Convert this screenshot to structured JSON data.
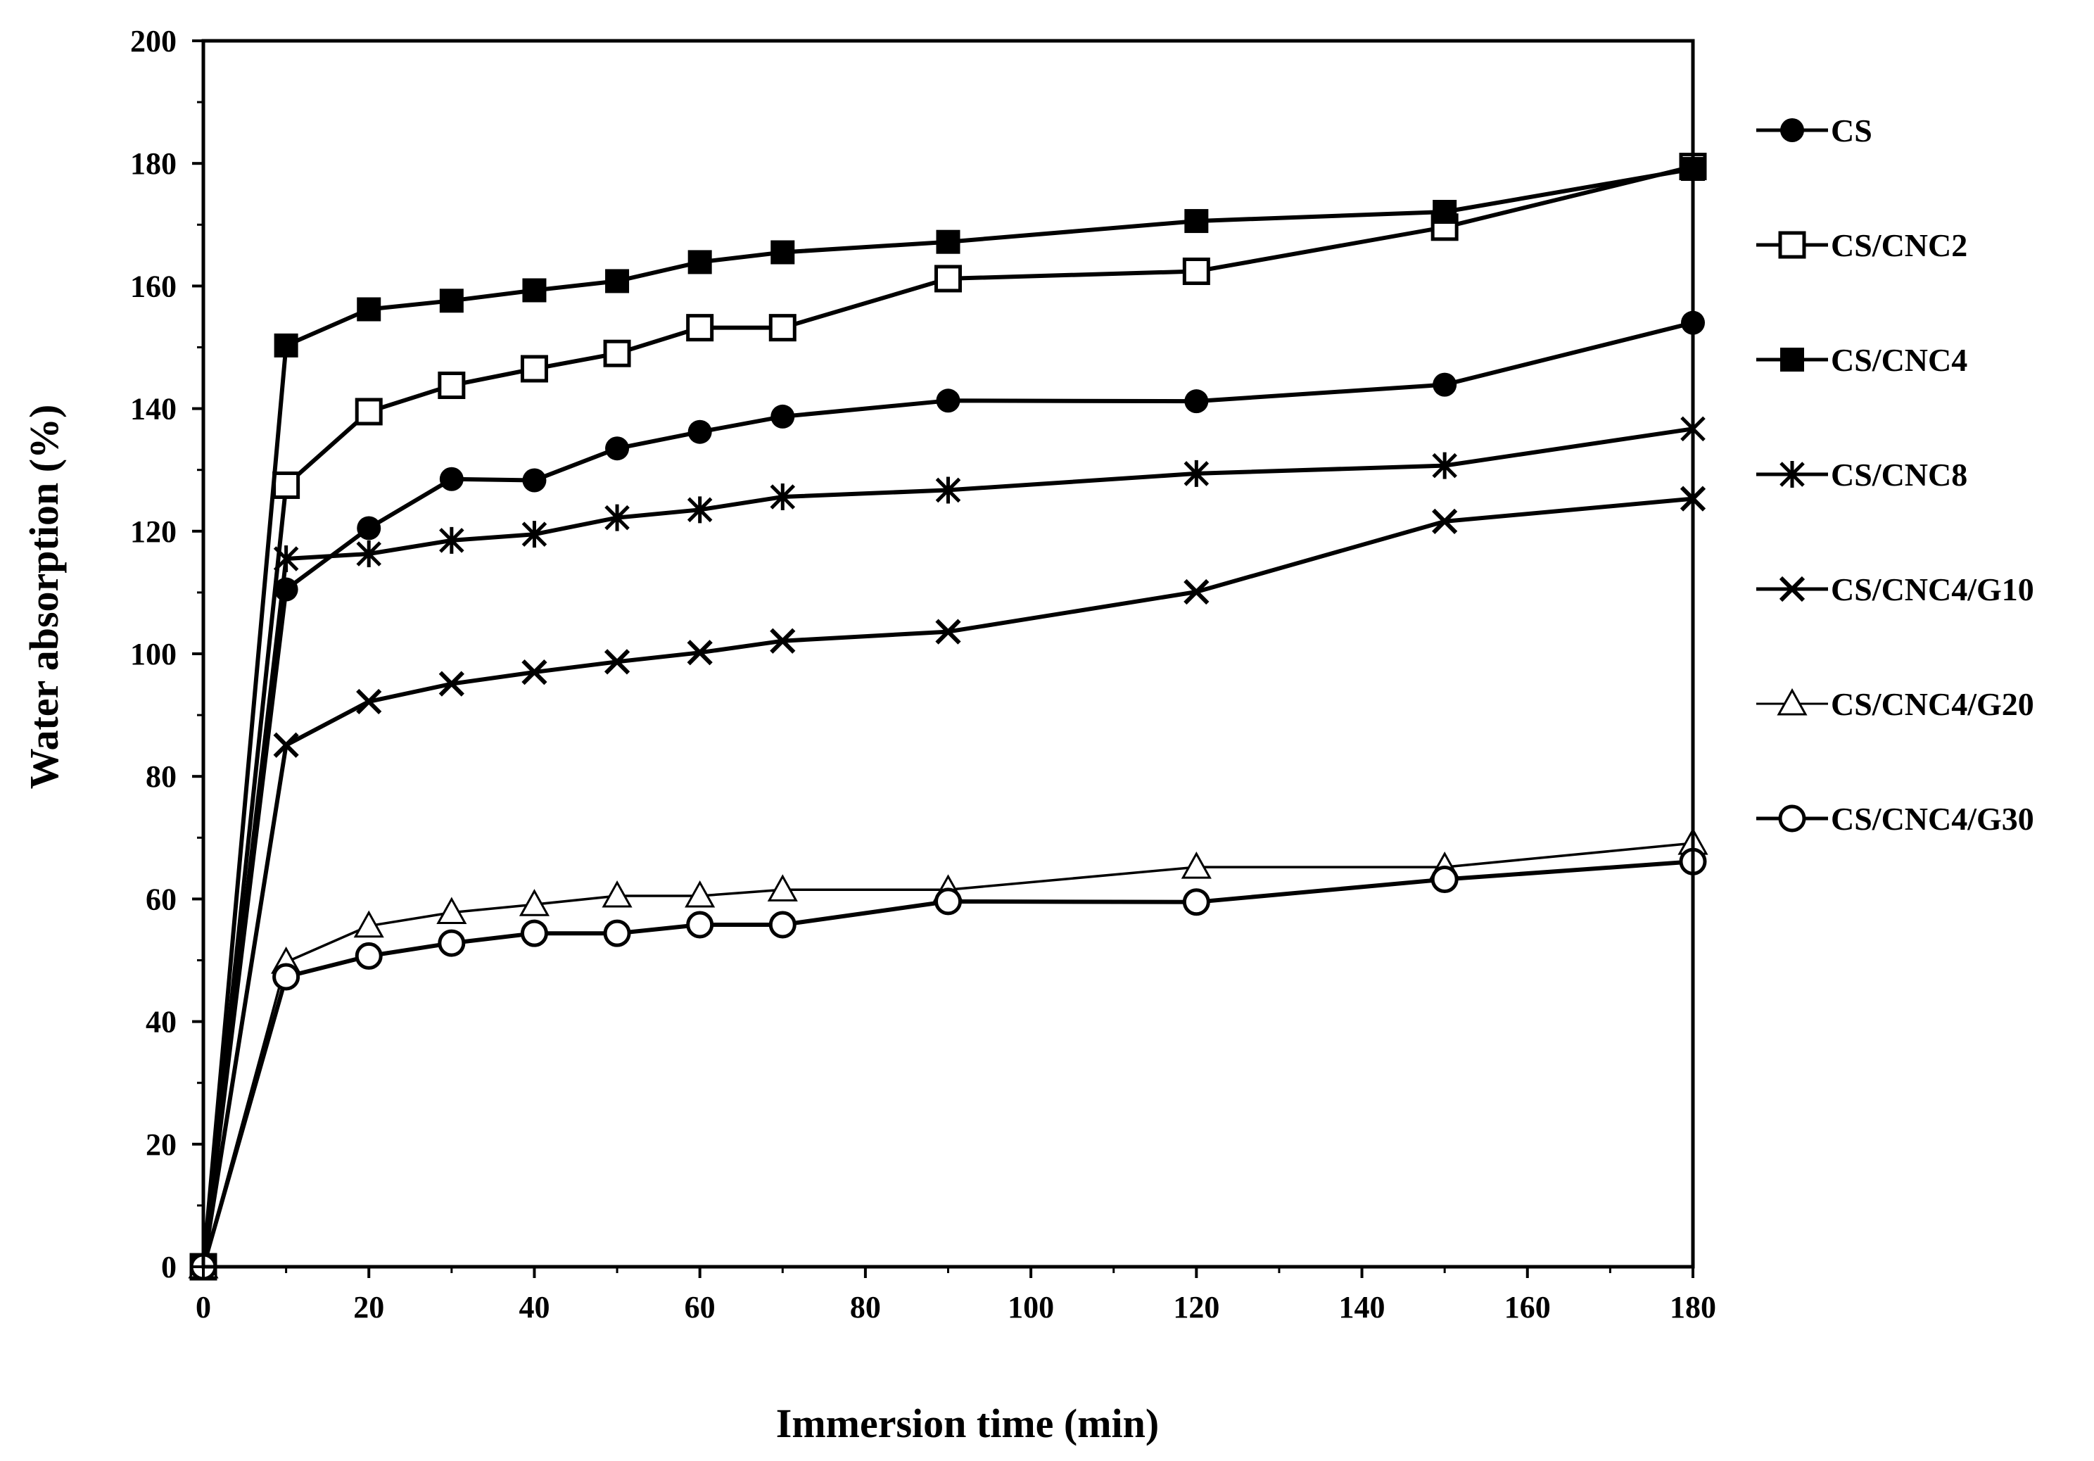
{
  "chart_data": {
    "type": "line",
    "title": "",
    "xlabel": "Immersion time (min)",
    "ylabel": "Water absorption (%)",
    "xlim": [
      0,
      180
    ],
    "ylim": [
      0,
      200
    ],
    "x_ticks": [
      0,
      20,
      40,
      60,
      80,
      100,
      120,
      140,
      160,
      180
    ],
    "y_ticks": [
      0,
      20,
      40,
      60,
      80,
      100,
      120,
      140,
      160,
      180,
      200
    ],
    "grid": false,
    "legend_position": "right",
    "x": [
      0,
      10,
      20,
      30,
      40,
      50,
      60,
      70,
      90,
      120,
      150,
      180
    ],
    "series": [
      {
        "name": "CS",
        "marker": "circle-filled",
        "values": [
          0,
          110.5,
          120.5,
          128.5,
          128.3,
          133.5,
          136.2,
          138.7,
          141.3,
          141.2,
          143.9,
          154
        ]
      },
      {
        "name": "CS/CNC2",
        "marker": "square-open",
        "values": [
          0,
          127.5,
          139.5,
          143.8,
          146.5,
          149,
          153.2,
          153.2,
          161.2,
          162.4,
          169.6,
          179.5
        ]
      },
      {
        "name": "CS/CNC4",
        "marker": "square-filled",
        "values": [
          0,
          150.3,
          156.2,
          157.6,
          159.3,
          160.8,
          163.9,
          165.5,
          167.2,
          170.6,
          172.1,
          179.1
        ]
      },
      {
        "name": "CS/CNC8",
        "marker": "asterisk",
        "values": [
          0,
          115.5,
          116.3,
          118.5,
          119.5,
          122.2,
          123.5,
          125.6,
          126.7,
          129.4,
          130.7,
          136.7
        ]
      },
      {
        "name": "CS/CNC4/G10",
        "marker": "x",
        "values": [
          0,
          85.1,
          92.2,
          95.1,
          97,
          98.7,
          100.2,
          102.1,
          103.6,
          110.1,
          121.6,
          125.3
        ]
      },
      {
        "name": "CS/CNC4/G20",
        "marker": "triangle-open",
        "values": [
          0,
          49.7,
          55.6,
          57.8,
          59.1,
          60.5,
          60.5,
          61.5,
          61.5,
          65.2,
          65.2,
          69.1
        ]
      },
      {
        "name": "CS/CNC4/G30",
        "marker": "circle-open",
        "values": [
          0,
          47.3,
          50.7,
          52.8,
          54.4,
          54.4,
          55.8,
          55.8,
          59.6,
          59.5,
          63.2,
          66.1
        ]
      }
    ]
  }
}
